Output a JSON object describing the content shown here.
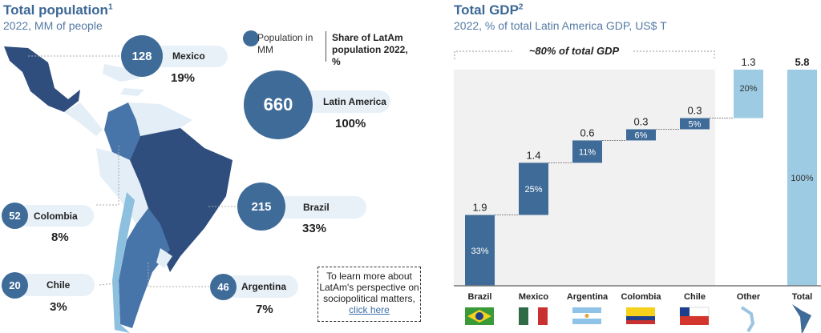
{
  "population": {
    "title": "Total population",
    "title_sup": "1",
    "subtitle": "2022, MM of people",
    "legend": {
      "circle_label": "Population in MM",
      "share_label": "Share of LatAm population 2022, %"
    },
    "countries": [
      {
        "name": "Mexico",
        "population": "128",
        "share": "19%"
      },
      {
        "name": "Latin America",
        "population": "660",
        "share": "100%"
      },
      {
        "name": "Brazil",
        "population": "215",
        "share": "33%"
      },
      {
        "name": "Colombia",
        "population": "52",
        "share": "8%"
      },
      {
        "name": "Chile",
        "population": "20",
        "share": "3%"
      },
      {
        "name": "Argentina",
        "population": "46",
        "share": "7%"
      }
    ],
    "note_text": "To learn more about LatAm's perspective on sociopolitical matters,",
    "note_link": "click here",
    "colors": {
      "bubble": "#3f6b98",
      "pill": "#e9f1f8",
      "map_dark": "#2f4e7e",
      "map_mid": "#4775aa",
      "map_light": "#8cc0de",
      "map_other": "#e4eef7"
    }
  },
  "chart_data": {
    "type": "waterfall",
    "title": "Total GDP",
    "title_sup": "2",
    "subtitle": "2022, % of total Latin America GDP, US$ T",
    "bracket_label": "~80% of total GDP",
    "categories": [
      "Brazil",
      "Mexico",
      "Argentina",
      "Colombia",
      "Chile",
      "Other",
      "Total"
    ],
    "values": [
      1.9,
      1.4,
      0.6,
      0.3,
      0.3,
      1.3,
      5.8
    ],
    "value_labels": [
      "1.9",
      "1.4",
      "0.6",
      "0.3",
      "0.3",
      "1.3",
      "5.8"
    ],
    "share_labels": [
      "33%",
      "25%",
      "11%",
      "6%",
      "5%",
      "20%",
      "100%"
    ],
    "ylim": [
      0,
      5.8
    ],
    "colors": {
      "top5": "#3f6b98",
      "other": "#9ccbe3",
      "total": "#9ccbe3",
      "highlight_bg": "#f1f1f1"
    }
  }
}
